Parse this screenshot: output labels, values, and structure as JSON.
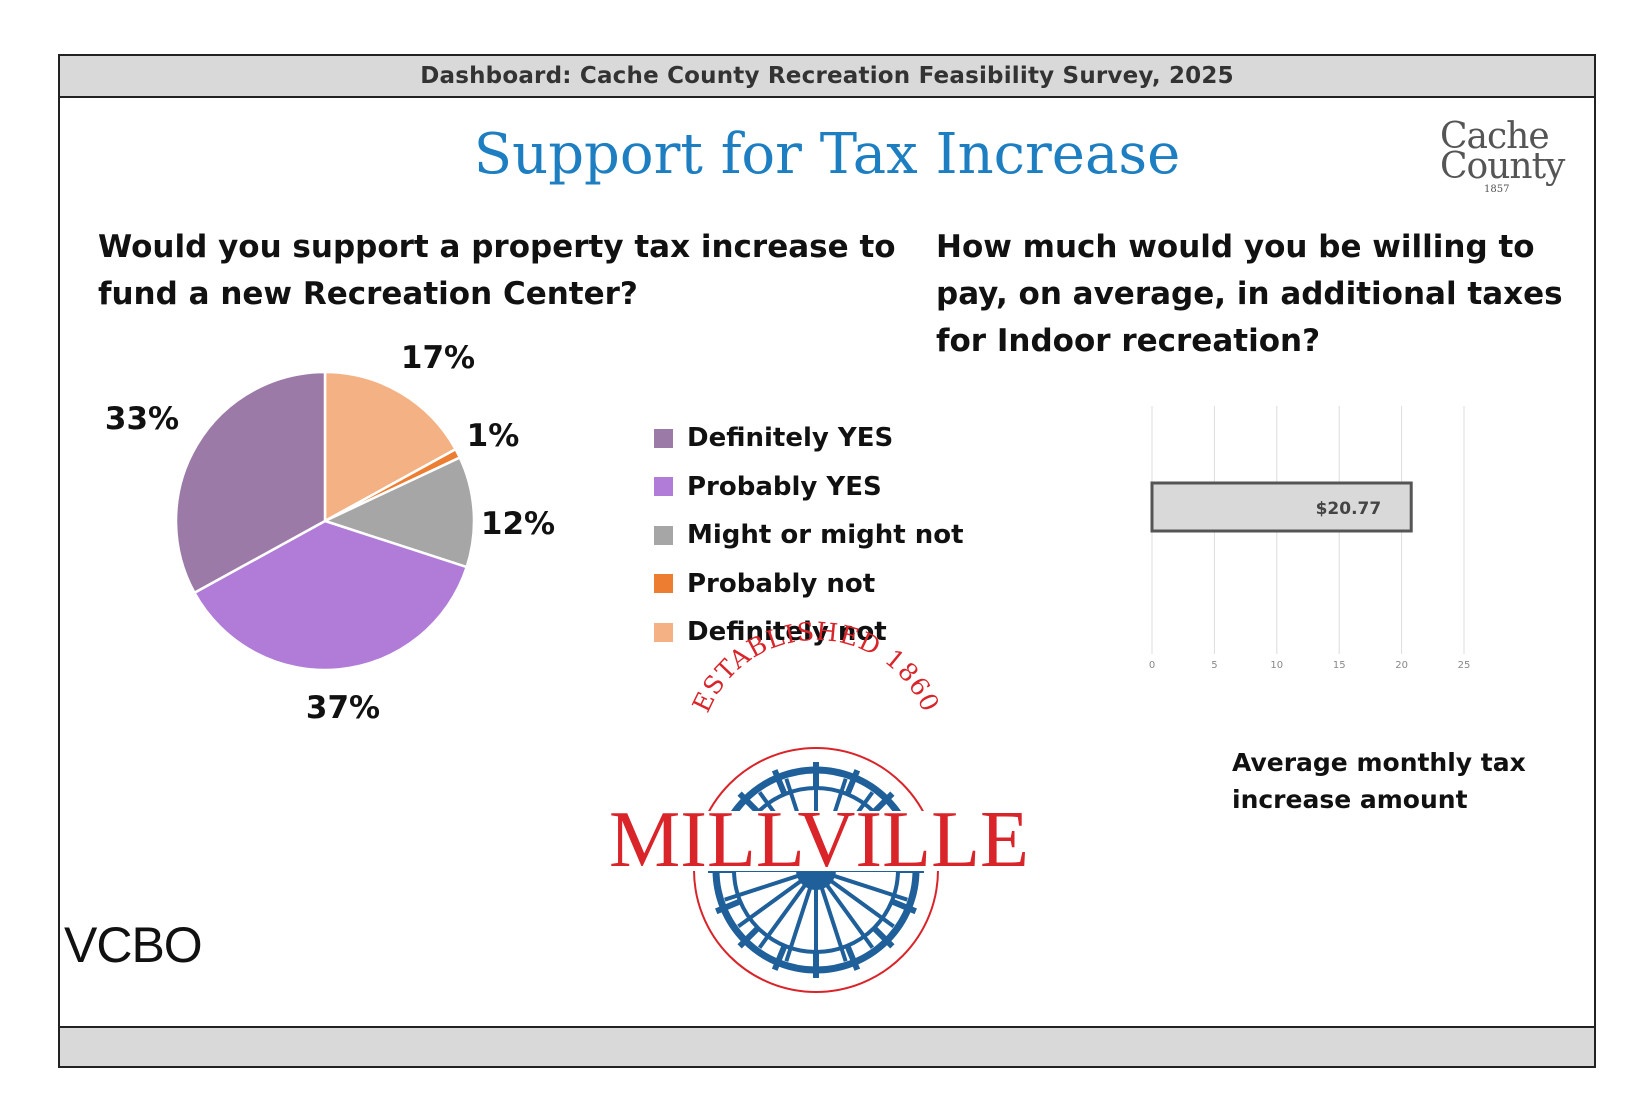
{
  "header": {
    "text": "Dashboard:  Cache County Recreation Feasibility Survey, 2025"
  },
  "title": "Support for Tax Increase",
  "logos": {
    "cache_county": {
      "line1": "Cache",
      "line2": "County",
      "year": "1857"
    },
    "millville": {
      "name": "MILLVILLE",
      "arc_text": "ESTABLISHED 1860",
      "colors": {
        "red": "#d9242a",
        "blue": "#1f5f9a"
      }
    },
    "vcbo": "VCBO"
  },
  "chart_data": [
    {
      "type": "pie",
      "title": "Would you support a property tax increase to fund a new Recreation Center?",
      "slices": [
        {
          "label": "Definitely not",
          "value": 17,
          "display": "17%",
          "color": "#f4b183"
        },
        {
          "label": "Probably not",
          "value": 1,
          "display": "1%",
          "color": "#ed7d31"
        },
        {
          "label": "Might or might not",
          "value": 12,
          "display": "12%",
          "color": "#a6a6a6"
        },
        {
          "label": "Probably YES",
          "value": 37,
          "display": "37%",
          "color": "#b07cd8"
        },
        {
          "label": "Definitely YES",
          "value": 33,
          "display": "33%",
          "color": "#9c7aa8"
        }
      ],
      "legend": {
        "placement": "right",
        "entries": [
          {
            "label": "Definitely YES",
            "color": "#9c7aa8"
          },
          {
            "label": "Probably YES",
            "color": "#b07cd8"
          },
          {
            "label": "Might or might not",
            "color": "#a6a6a6"
          },
          {
            "label": "Probably not",
            "color": "#ed7d31"
          },
          {
            "label": "Definitely not",
            "color": "#f4b183"
          }
        ]
      }
    },
    {
      "type": "bar",
      "orientation": "horizontal",
      "title": "How much would you be willing to pay, on average, in additional taxes for Indoor recreation?",
      "xlabel": "Average monthly tax increase amount",
      "values": [
        20.77
      ],
      "data_labels": [
        "$20.77"
      ],
      "xlim": [
        0,
        25
      ],
      "xticks": [
        "0",
        "5",
        "10",
        "15",
        "20",
        "25"
      ],
      "grid": true,
      "bar_color": "#d9d9d9"
    }
  ]
}
